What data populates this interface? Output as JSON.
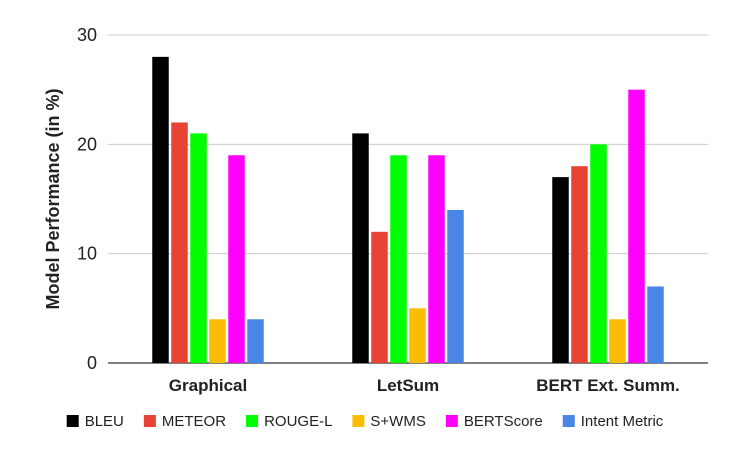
{
  "chart_data": {
    "type": "bar",
    "title": "",
    "xlabel": "",
    "ylabel": "Model Performance (in %)",
    "ylim": [
      0,
      30
    ],
    "yticks": [
      0,
      10,
      20,
      30
    ],
    "grid": true,
    "legend_position": "bottom",
    "categories": [
      "Graphical",
      "LetSum",
      "BERT Ext. Summ."
    ],
    "series": [
      {
        "name": "BLEU",
        "color": "#000000",
        "values": [
          28,
          21,
          17
        ]
      },
      {
        "name": "METEOR",
        "color": "#e94335",
        "values": [
          22,
          12,
          18
        ]
      },
      {
        "name": "ROUGE-L",
        "color": "#00ff00",
        "values": [
          21,
          19,
          20
        ]
      },
      {
        "name": "S+WMS",
        "color": "#fbbc04",
        "values": [
          4,
          5,
          4
        ]
      },
      {
        "name": "BERTScore",
        "color": "#ff00ff",
        "values": [
          19,
          19,
          25
        ]
      },
      {
        "name": "Intent Metric",
        "color": "#4a86e8",
        "values": [
          4,
          14,
          7
        ]
      }
    ]
  }
}
